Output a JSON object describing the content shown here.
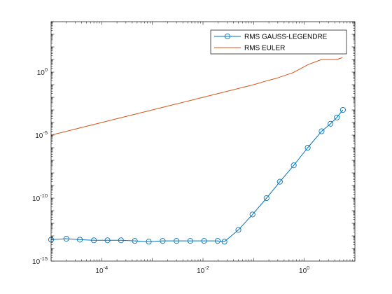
{
  "chart_data": {
    "type": "line",
    "title": "",
    "xlabel": "",
    "ylabel": "",
    "xscale": "log",
    "yscale": "log",
    "xlim": [
      1e-05,
      10
    ],
    "ylim": [
      1e-15,
      10000
    ],
    "grid": false,
    "legend_position": "top-right",
    "x_ticks": [
      {
        "value": 0.0001,
        "base": "10",
        "exp": "-4"
      },
      {
        "value": 0.01,
        "base": "10",
        "exp": "-2"
      },
      {
        "value": 1,
        "base": "10",
        "exp": "0"
      }
    ],
    "y_ticks": [
      {
        "value": 1e-15,
        "base": "10",
        "exp": "-15"
      },
      {
        "value": 1e-10,
        "base": "10",
        "exp": "-10"
      },
      {
        "value": 1e-05,
        "base": "10",
        "exp": "-5"
      },
      {
        "value": 1,
        "base": "10",
        "exp": "0"
      }
    ],
    "series": [
      {
        "name": "RMS GAUSS-LEGENDRE",
        "color": "#0072BD",
        "marker": "circle",
        "x": [
          1e-05,
          2e-05,
          3.7e-05,
          7e-05,
          0.00013,
          0.00024,
          0.00045,
          0.00085,
          0.0016,
          0.003,
          0.0056,
          0.0105,
          0.0195,
          0.0265,
          0.05,
          0.095,
          0.18,
          0.33,
          0.62,
          1.17,
          2.2,
          3.3,
          4.4,
          5.8
        ],
        "y": [
          5e-14,
          6e-14,
          5e-14,
          4.5e-14,
          4.5e-14,
          4.5e-14,
          4e-14,
          3.5e-14,
          4e-14,
          4e-14,
          4e-14,
          4e-14,
          4e-14,
          3.5e-14,
          3e-13,
          5e-12,
          1e-10,
          2e-09,
          4e-08,
          1e-06,
          2e-05,
          8e-05,
          0.00025,
          0.001
        ]
      },
      {
        "name": "RMS EULER",
        "color": "#D95319",
        "marker": "none",
        "x": [
          1e-05,
          2e-05,
          5e-05,
          0.0001,
          0.0003,
          0.001,
          0.003,
          0.01,
          0.03,
          0.1,
          0.18,
          0.3,
          0.6,
          1.2,
          2.2,
          4.4,
          5.6
        ],
        "y": [
          1e-05,
          2e-05,
          5e-05,
          0.0001,
          0.0003,
          0.001,
          0.003,
          0.01,
          0.03,
          0.1,
          0.2,
          0.35,
          0.9,
          4,
          10,
          10,
          14
        ]
      }
    ]
  }
}
